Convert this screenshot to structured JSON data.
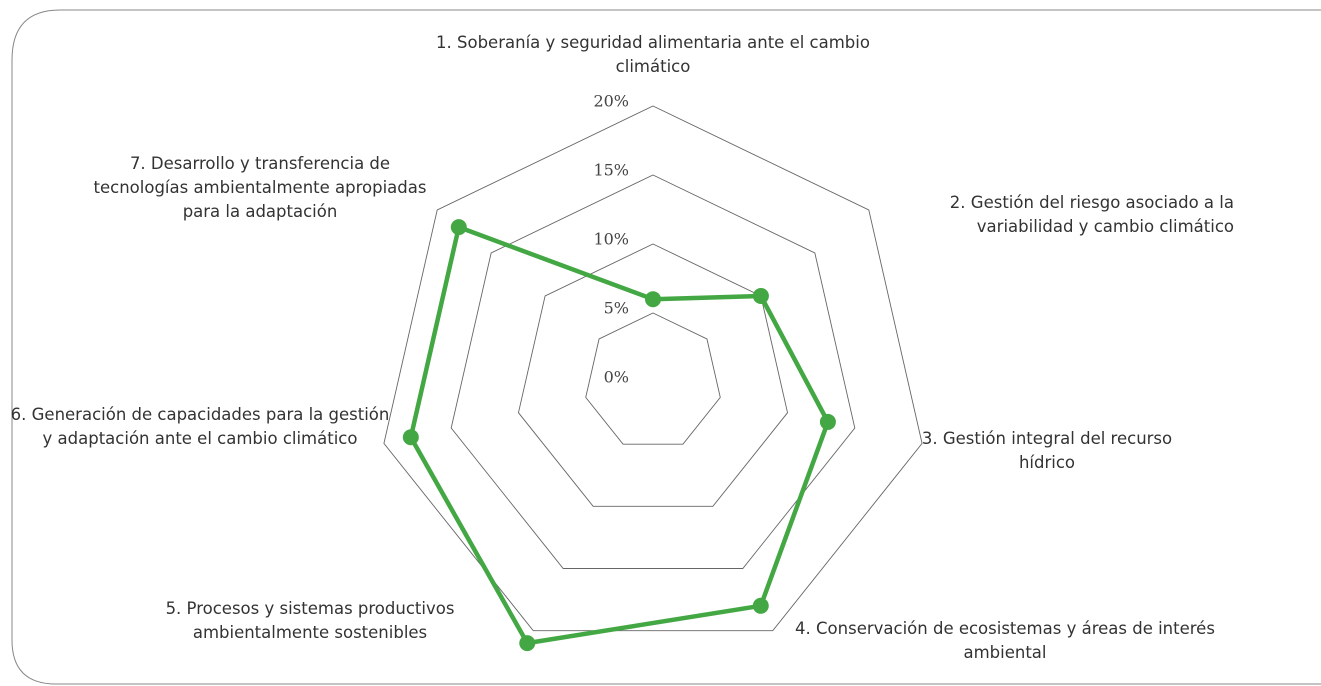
{
  "chart_data": {
    "type": "radar",
    "categories": [
      "1. Soberanía y seguridad alimentaria ante el cambio climático",
      "2. Gestión del riesgo asociado a la variabilidad y cambio climático",
      "3. Gestión integral del recurso hídrico",
      "4. Conservación de ecosistemas y áreas de interés ambiental",
      "5. Procesos y sistemas productivos ambientalmente sostenibles",
      "6. Generación de capacidades para la gestión y adaptación ante el cambio climático",
      "7. Desarrollo y transferencia de tecnologías ambientalmente apropiadas para la adaptación"
    ],
    "values": [
      6,
      10,
      13,
      18,
      21,
      18,
      18
    ],
    "color": "#43a843",
    "ylim": [
      0,
      20
    ],
    "yticks": [
      {
        "value": 0,
        "label": "0%"
      },
      {
        "value": 5,
        "label": "5%"
      },
      {
        "value": 10,
        "label": "10%"
      },
      {
        "value": 15,
        "label": "15%"
      },
      {
        "value": 20,
        "label": "20%"
      }
    ],
    "grid": true
  }
}
